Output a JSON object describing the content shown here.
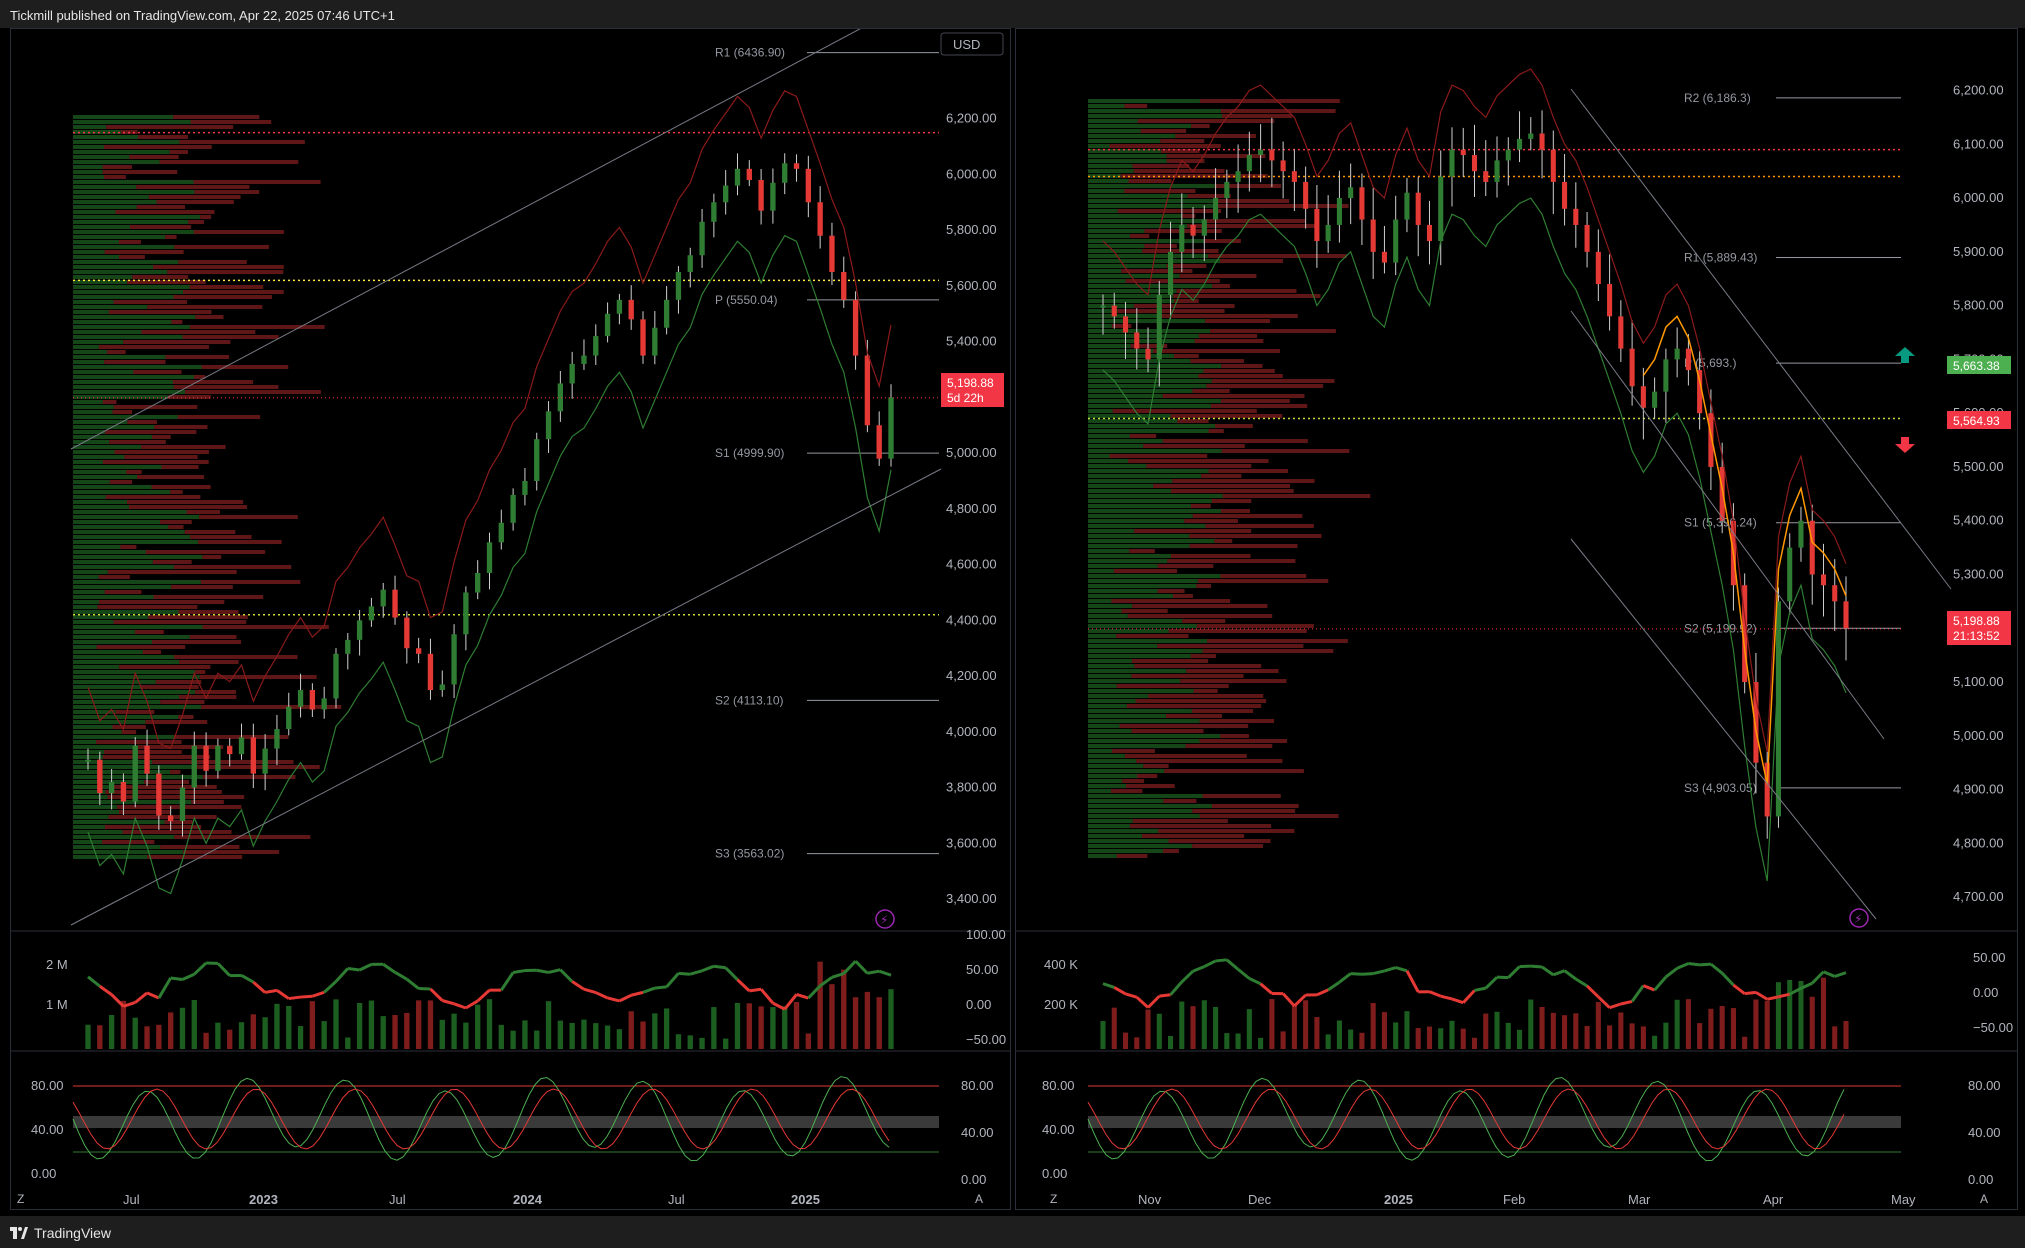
{
  "header": {
    "publisher_text": "Tickmill published on TradingView.com, Apr 22, 2025 07:46 UTC+1"
  },
  "footer": {
    "brand": "TradingView"
  },
  "colors": {
    "bull": "#26a69a",
    "green_candle": "#2e7d32",
    "red_candle": "#e53935",
    "price_tag": "#f23645",
    "level_green": "#4caf50",
    "level_red": "#f23645",
    "orange": "#ff9800",
    "teal": "#089981"
  },
  "chart_data": [
    {
      "id": "left",
      "type": "line",
      "currency_button": "USD",
      "x_ticks": [
        "Jul",
        "2023",
        "Jul",
        "2024",
        "Jul",
        "2025"
      ],
      "y_ticks": [
        "6,200.00",
        "6,000.00",
        "5,800.00",
        "5,600.00",
        "5,400.00",
        "5,200.00",
        "5,000.00",
        "4,800.00",
        "4,600.00",
        "4,400.00",
        "4,200.00",
        "4,000.00",
        "3,800.00",
        "3,600.00",
        "3,400.00"
      ],
      "ylim": [
        3350,
        6450
      ],
      "pivot_levels": [
        {
          "label": "R1 (6436.90)",
          "value": 6436.9
        },
        {
          "label": "P (5550.04)",
          "value": 5550.04
        },
        {
          "label": "S1 (4999.90)",
          "value": 4999.9
        },
        {
          "label": "S2 (4113.10)",
          "value": 4113.1
        },
        {
          "label": "S3 (3563.02)",
          "value": 3563.02
        }
      ],
      "last_price": {
        "value": "5,198.88",
        "countdown": "5d 22h"
      },
      "close_series": [
        3900,
        3780,
        3820,
        3750,
        3950,
        3850,
        3700,
        3680,
        3800,
        3950,
        3860,
        3950,
        3920,
        3980,
        3850,
        3940,
        4010,
        4090,
        4150,
        4080,
        4120,
        4280,
        4330,
        4400,
        4450,
        4510,
        4410,
        4300,
        4280,
        4150,
        4170,
        4350,
        4500,
        4570,
        4680,
        4750,
        4850,
        4900,
        5050,
        5150,
        5250,
        5320,
        5350,
        5420,
        5500,
        5550,
        5480,
        5350,
        5450,
        5550,
        5650,
        5710,
        5830,
        5900,
        5960,
        6020,
        5980,
        5870,
        5970,
        6040,
        6020,
        5900,
        5780,
        5650,
        5550,
        5350,
        5100,
        4980,
        5200
      ],
      "sub_volume": {
        "y_ticks": [
          "2 M",
          "1 M"
        ],
        "rsi_ticks": [
          "100.00",
          "50.00",
          "0.00",
          "−50.00"
        ]
      },
      "sub_stoch": {
        "y_ticks": [
          "80.00",
          "40.00",
          "0.00"
        ],
        "right_ticks": [
          "80.00",
          "40.00",
          "0.00"
        ]
      }
    },
    {
      "id": "right",
      "type": "line",
      "x_ticks": [
        "Nov",
        "Dec",
        "2025",
        "Feb",
        "Mar",
        "Apr",
        "May"
      ],
      "y_ticks": [
        "6,200.00",
        "6,100.00",
        "6,000.00",
        "5,900.00",
        "5,800.00",
        "5,700.00",
        "5,600.00",
        "5,500.00",
        "5,400.00",
        "5,300.00",
        "5,200.00",
        "5,100.00",
        "5,000.00",
        "4,900.00",
        "4,800.00",
        "4,700.00"
      ],
      "ylim": [
        4650,
        6240
      ],
      "pivot_levels": [
        {
          "label": "R2 (6,186.3)",
          "value": 6186.3
        },
        {
          "label": "R1 (5,889.43)",
          "value": 5889.43
        },
        {
          "label": "P (5,693.)",
          "value": 5693.0
        },
        {
          "label": "S1 (5,396.24)",
          "value": 5396.24
        },
        {
          "label": "S2 (5,199.92)",
          "value": 5199.92
        },
        {
          "label": "S3 (4,903.05)",
          "value": 4903.05
        }
      ],
      "tag_green": "5,663.38",
      "tag_red": "5,564.93",
      "last_price": {
        "value": "5,198.88",
        "countdown": "21:13:52"
      },
      "close_series": [
        5800,
        5780,
        5750,
        5720,
        5700,
        5820,
        5900,
        5950,
        5930,
        5960,
        6000,
        6030,
        6050,
        6080,
        6090,
        6070,
        6050,
        6030,
        5980,
        5920,
        5950,
        6000,
        6020,
        5960,
        5900,
        5880,
        5960,
        6010,
        5950,
        5920,
        6040,
        6090,
        6080,
        6050,
        6030,
        6070,
        6090,
        6110,
        6120,
        6090,
        6030,
        5980,
        5950,
        5900,
        5840,
        5780,
        5720,
        5650,
        5610,
        5640,
        5700,
        5720,
        5680,
        5600,
        5500,
        5400,
        5280,
        5100,
        4950,
        4850,
        5250,
        5350,
        5400,
        5300,
        5280,
        5250,
        5200
      ],
      "sub_volume": {
        "y_ticks": [
          "400 K",
          "200 K"
        ],
        "rsi_ticks": [
          "50.00",
          "0.00",
          "−50.00"
        ]
      },
      "sub_stoch": {
        "y_ticks": [
          "80.00",
          "40.00",
          "0.00"
        ],
        "right_ticks": [
          "80.00",
          "40.00",
          "0.00"
        ]
      }
    }
  ]
}
